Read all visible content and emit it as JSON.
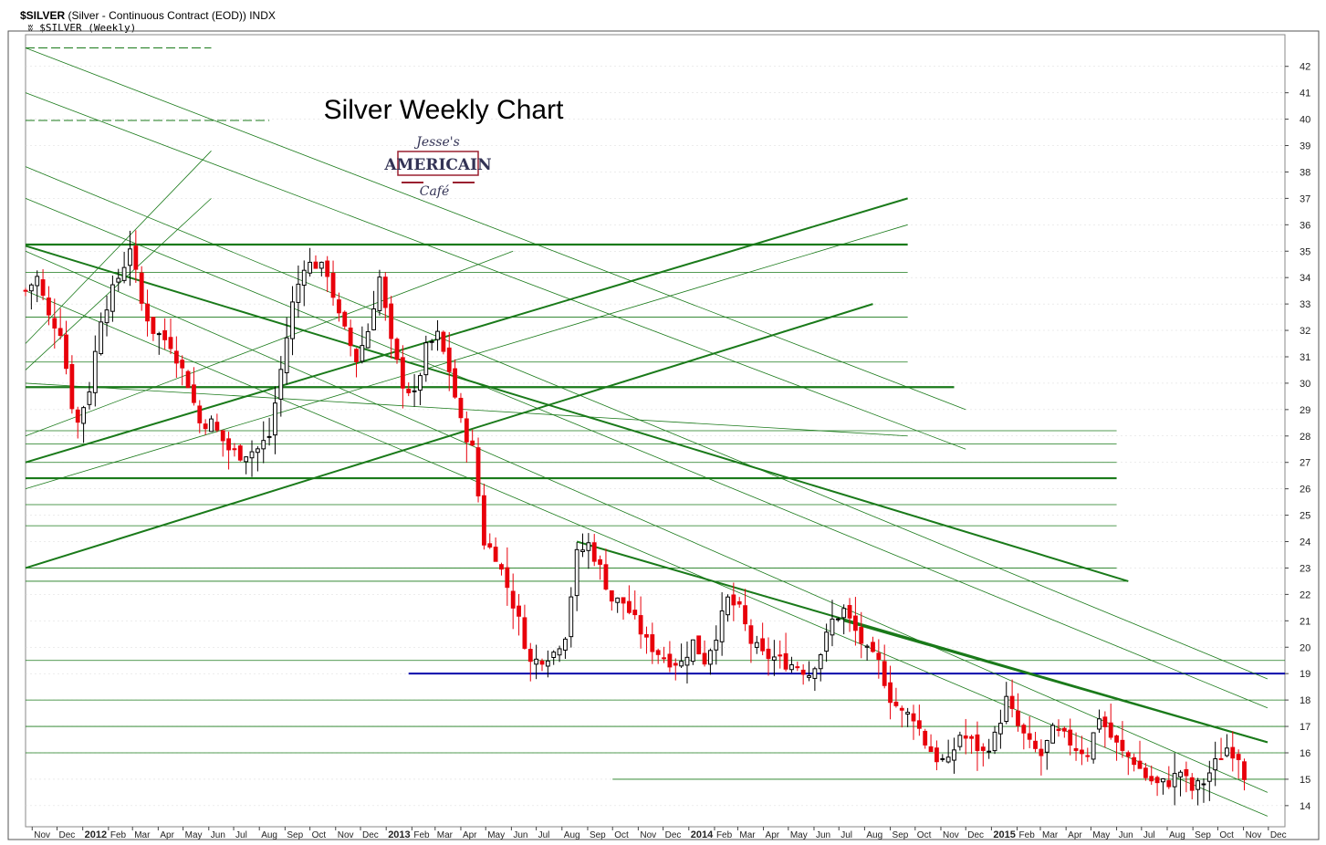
{
  "header": {
    "symbol": "$SILVER",
    "description": "(Silver - Continuous Contract (EOD)) INDX",
    "series_label": "$SILVER (Weekly)"
  },
  "logo": {
    "line1": "Jesse's",
    "line2": "AMERICAIN",
    "line3": "Café"
  },
  "colors": {
    "up": "#ffffff",
    "down": "#e8000b",
    "wick": "#000000",
    "trend": "#1a7a1a",
    "support": "#0000aa",
    "grid": "#d8d8d8"
  },
  "chart_data": {
    "type": "candlestick",
    "title": "Silver Weekly Chart",
    "ylim": [
      13.2,
      43.2
    ],
    "yticks": [
      14,
      15,
      16,
      17,
      18,
      19,
      20,
      21,
      22,
      23,
      24,
      25,
      26,
      27,
      28,
      29,
      30,
      31,
      32,
      33,
      34,
      35,
      36,
      37,
      38,
      39,
      40,
      41,
      42
    ],
    "xlim": [
      "2011-10-24",
      "2015-12-21"
    ],
    "x_ticks": [
      {
        "label": "Nov",
        "date": "2011-11-01"
      },
      {
        "label": "Dec",
        "date": "2011-12-01"
      },
      {
        "label": "2012",
        "date": "2012-01-01",
        "year": true
      },
      {
        "label": "Feb",
        "date": "2012-02-01"
      },
      {
        "label": "Mar",
        "date": "2012-03-01"
      },
      {
        "label": "Apr",
        "date": "2012-04-01"
      },
      {
        "label": "May",
        "date": "2012-05-01"
      },
      {
        "label": "Jun",
        "date": "2012-06-01"
      },
      {
        "label": "Jul",
        "date": "2012-07-01"
      },
      {
        "label": "Aug",
        "date": "2012-08-01"
      },
      {
        "label": "Sep",
        "date": "2012-09-01"
      },
      {
        "label": "Oct",
        "date": "2012-10-01"
      },
      {
        "label": "Nov",
        "date": "2012-11-01"
      },
      {
        "label": "Dec",
        "date": "2012-12-01"
      },
      {
        "label": "2013",
        "date": "2013-01-01",
        "year": true
      },
      {
        "label": "Feb",
        "date": "2013-02-01"
      },
      {
        "label": "Mar",
        "date": "2013-03-01"
      },
      {
        "label": "Apr",
        "date": "2013-04-01"
      },
      {
        "label": "May",
        "date": "2013-05-01"
      },
      {
        "label": "Jun",
        "date": "2013-06-01"
      },
      {
        "label": "Jul",
        "date": "2013-07-01"
      },
      {
        "label": "Aug",
        "date": "2013-08-01"
      },
      {
        "label": "Sep",
        "date": "2013-09-01"
      },
      {
        "label": "Oct",
        "date": "2013-10-01"
      },
      {
        "label": "Nov",
        "date": "2013-11-01"
      },
      {
        "label": "Dec",
        "date": "2013-12-01"
      },
      {
        "label": "2014",
        "date": "2014-01-01",
        "year": true
      },
      {
        "label": "Feb",
        "date": "2014-02-01"
      },
      {
        "label": "Mar",
        "date": "2014-03-01"
      },
      {
        "label": "Apr",
        "date": "2014-04-01"
      },
      {
        "label": "May",
        "date": "2014-05-01"
      },
      {
        "label": "Jun",
        "date": "2014-06-01"
      },
      {
        "label": "Jul",
        "date": "2014-07-01"
      },
      {
        "label": "Aug",
        "date": "2014-08-01"
      },
      {
        "label": "Sep",
        "date": "2014-09-01"
      },
      {
        "label": "Oct",
        "date": "2014-10-01"
      },
      {
        "label": "Nov",
        "date": "2014-11-01"
      },
      {
        "label": "Dec",
        "date": "2014-12-01"
      },
      {
        "label": "2015",
        "date": "2015-01-01",
        "year": true
      },
      {
        "label": "Feb",
        "date": "2015-02-01"
      },
      {
        "label": "Mar",
        "date": "2015-03-01"
      },
      {
        "label": "Apr",
        "date": "2015-04-01"
      },
      {
        "label": "May",
        "date": "2015-05-01"
      },
      {
        "label": "Jun",
        "date": "2015-06-01"
      },
      {
        "label": "Jul",
        "date": "2015-07-01"
      },
      {
        "label": "Aug",
        "date": "2015-08-01"
      },
      {
        "label": "Sep",
        "date": "2015-09-01"
      },
      {
        "label": "Oct",
        "date": "2015-10-01"
      },
      {
        "label": "Nov",
        "date": "2015-11-01"
      },
      {
        "label": "Dec",
        "date": "2015-12-01"
      }
    ],
    "grid": true,
    "close_keypoints": [
      [
        "2011-10-24",
        33.5
      ],
      [
        "2011-11-07",
        34.0
      ],
      [
        "2011-11-21",
        32.5
      ],
      [
        "2011-12-05",
        32.0
      ],
      [
        "2011-12-19",
        29.2
      ],
      [
        "2011-12-26",
        28.5
      ],
      [
        "2012-01-09",
        29.8
      ],
      [
        "2012-01-23",
        32.5
      ],
      [
        "2012-02-06",
        33.5
      ],
      [
        "2012-02-20",
        34.5
      ],
      [
        "2012-02-27",
        35.2
      ],
      [
        "2012-03-12",
        33.0
      ],
      [
        "2012-03-26",
        32.0
      ],
      [
        "2012-04-16",
        31.5
      ],
      [
        "2012-05-07",
        30.0
      ],
      [
        "2012-05-21",
        28.5
      ],
      [
        "2012-06-04",
        28.5
      ],
      [
        "2012-06-25",
        27.5
      ],
      [
        "2012-07-09",
        27.3
      ],
      [
        "2012-07-30",
        27.5
      ],
      [
        "2012-08-13",
        28.0
      ],
      [
        "2012-08-27",
        30.5
      ],
      [
        "2012-09-10",
        33.0
      ],
      [
        "2012-09-24",
        34.5
      ],
      [
        "2012-10-08",
        34.5
      ],
      [
        "2012-10-22",
        34.2
      ],
      [
        "2012-11-05",
        32.5
      ],
      [
        "2012-11-26",
        30.9
      ],
      [
        "2012-12-10",
        32.0
      ],
      [
        "2012-12-24",
        34.0
      ],
      [
        "2013-01-07",
        31.5
      ],
      [
        "2013-01-21",
        30.0
      ],
      [
        "2013-02-04",
        29.5
      ],
      [
        "2013-02-18",
        31.3
      ],
      [
        "2013-03-04",
        31.8
      ],
      [
        "2013-03-18",
        30.5
      ],
      [
        "2013-04-01",
        28.5
      ],
      [
        "2013-04-15",
        27.5
      ],
      [
        "2013-04-29",
        24.0
      ],
      [
        "2013-05-13",
        23.5
      ],
      [
        "2013-05-27",
        22.3
      ],
      [
        "2013-06-10",
        21.0
      ],
      [
        "2013-06-24",
        19.4
      ],
      [
        "2013-07-08",
        19.6
      ],
      [
        "2013-07-22",
        19.8
      ],
      [
        "2013-08-05",
        20.5
      ],
      [
        "2013-08-19",
        23.5
      ],
      [
        "2013-09-02",
        23.9
      ],
      [
        "2013-09-16",
        23.0
      ],
      [
        "2013-09-30",
        21.8
      ],
      [
        "2013-10-14",
        21.7
      ],
      [
        "2013-10-28",
        21.0
      ],
      [
        "2013-11-11",
        20.2
      ],
      [
        "2013-11-25",
        19.8
      ],
      [
        "2013-12-09",
        19.5
      ],
      [
        "2013-12-23",
        19.4
      ],
      [
        "2014-01-06",
        20.2
      ],
      [
        "2014-01-20",
        19.5
      ],
      [
        "2014-02-03",
        20.5
      ],
      [
        "2014-02-17",
        21.8
      ],
      [
        "2014-03-03",
        21.4
      ],
      [
        "2014-03-17",
        20.2
      ],
      [
        "2014-03-31",
        19.7
      ],
      [
        "2014-04-14",
        19.6
      ],
      [
        "2014-04-28",
        19.4
      ],
      [
        "2014-05-12",
        19.3
      ],
      [
        "2014-05-26",
        19.0
      ],
      [
        "2014-06-09",
        19.8
      ],
      [
        "2014-06-23",
        21.0
      ],
      [
        "2014-07-07",
        21.4
      ],
      [
        "2014-07-21",
        20.6
      ],
      [
        "2014-08-04",
        19.8
      ],
      [
        "2014-08-18",
        19.4
      ],
      [
        "2014-09-01",
        18.1
      ],
      [
        "2014-09-15",
        17.5
      ],
      [
        "2014-09-29",
        17.4
      ],
      [
        "2014-10-13",
        16.4
      ],
      [
        "2014-10-27",
        15.8
      ],
      [
        "2014-11-10",
        15.6
      ],
      [
        "2014-11-24",
        16.7
      ],
      [
        "2014-12-08",
        16.4
      ],
      [
        "2014-12-22",
        16.0
      ],
      [
        "2015-01-05",
        16.6
      ],
      [
        "2015-01-19",
        18.0
      ],
      [
        "2015-02-02",
        17.0
      ],
      [
        "2015-02-16",
        16.3
      ],
      [
        "2015-03-02",
        15.9
      ],
      [
        "2015-03-16",
        16.8
      ],
      [
        "2015-03-30",
        16.6
      ],
      [
        "2015-04-13",
        16.2
      ],
      [
        "2015-04-27",
        16.0
      ],
      [
        "2015-05-11",
        17.4
      ],
      [
        "2015-05-25",
        16.6
      ],
      [
        "2015-06-08",
        16.0
      ],
      [
        "2015-06-22",
        15.7
      ],
      [
        "2015-07-06",
        15.1
      ],
      [
        "2015-07-20",
        14.8
      ],
      [
        "2015-08-03",
        14.9
      ],
      [
        "2015-08-17",
        15.3
      ],
      [
        "2015-08-31",
        14.6
      ],
      [
        "2015-09-14",
        14.9
      ],
      [
        "2015-09-28",
        15.6
      ],
      [
        "2015-10-12",
        16.2
      ],
      [
        "2015-10-26",
        15.9
      ],
      [
        "2015-11-02",
        15.2
      ]
    ],
    "hlines": [
      {
        "y": 19.0,
        "from": "2013-01-28",
        "to": "2015-12-21",
        "style": "support"
      },
      {
        "y": 35.25,
        "from": "2011-10-24",
        "to": "2014-09-22",
        "style": "trend-bold"
      },
      {
        "y": 29.85,
        "from": "2011-10-24",
        "to": "2014-11-17",
        "style": "trend-bold"
      },
      {
        "y": 26.4,
        "from": "2011-10-24",
        "to": "2015-06-01",
        "style": "trend-bold"
      },
      {
        "y": 16.0,
        "from": "2011-10-24",
        "to": "2015-12-21",
        "style": "trend"
      },
      {
        "y": 17.0,
        "from": "2011-10-24",
        "to": "2015-12-21",
        "style": "trend"
      },
      {
        "y": 18.0,
        "from": "2011-10-24",
        "to": "2015-12-21",
        "style": "trend"
      },
      {
        "y": 15.0,
        "from": "2013-10-01",
        "to": "2015-12-21",
        "style": "trend"
      },
      {
        "y": 19.5,
        "from": "2011-10-24",
        "to": "2015-12-21",
        "style": "trend"
      },
      {
        "y": 23.0,
        "from": "2011-10-24",
        "to": "2015-06-01",
        "style": "trend"
      },
      {
        "y": 22.5,
        "from": "2011-10-24",
        "to": "2015-06-15",
        "style": "trend"
      },
      {
        "y": 24.6,
        "from": "2011-10-24",
        "to": "2015-06-01",
        "style": "trend"
      },
      {
        "y": 25.4,
        "from": "2011-10-24",
        "to": "2015-06-01",
        "style": "trend"
      },
      {
        "y": 27.0,
        "from": "2011-10-24",
        "to": "2015-06-01",
        "style": "trend"
      },
      {
        "y": 27.7,
        "from": "2011-10-24",
        "to": "2015-06-01",
        "style": "trend"
      },
      {
        "y": 28.2,
        "from": "2011-10-24",
        "to": "2015-06-01",
        "style": "trend"
      },
      {
        "y": 30.8,
        "from": "2011-10-24",
        "to": "2014-09-22",
        "style": "trend"
      },
      {
        "y": 32.5,
        "from": "2011-10-24",
        "to": "2014-09-22",
        "style": "trend"
      },
      {
        "y": 34.2,
        "from": "2011-10-24",
        "to": "2014-09-22",
        "style": "trend"
      },
      {
        "y": 39.95,
        "from": "2011-10-24",
        "to": "2012-08-13",
        "style": "trend-dash"
      },
      {
        "y": 42.7,
        "from": "2011-10-24",
        "to": "2012-06-04",
        "style": "trend-dash"
      }
    ],
    "trendlines": [
      {
        "from": [
          "2011-10-24",
          23.0
        ],
        "to": [
          "2014-08-11",
          33.0
        ],
        "bold": true
      },
      {
        "from": [
          "2011-10-24",
          27.0
        ],
        "to": [
          "2014-09-22",
          37.0
        ],
        "bold": true
      },
      {
        "from": [
          "2011-10-24",
          35.2
        ],
        "to": [
          "2015-06-15",
          22.5
        ],
        "bold": true
      },
      {
        "from": [
          "2013-08-19",
          24.0
        ],
        "to": [
          "2015-11-30",
          16.4
        ],
        "bold": true
      },
      {
        "from": [
          "2014-07-07",
          21.0
        ],
        "to": [
          "2015-11-30",
          16.4
        ],
        "bold": true
      },
      {
        "from": [
          "2011-10-24",
          42.7
        ],
        "to": [
          "2014-12-01",
          29.0
        ],
        "bold": false
      },
      {
        "from": [
          "2011-10-24",
          41.0
        ],
        "to": [
          "2014-12-01",
          27.5
        ],
        "bold": false
      },
      {
        "from": [
          "2011-10-24",
          38.2
        ],
        "to": [
          "2015-11-30",
          18.8
        ],
        "bold": false
      },
      {
        "from": [
          "2011-10-24",
          37.0
        ],
        "to": [
          "2015-11-30",
          17.7
        ],
        "bold": false
      },
      {
        "from": [
          "2011-10-24",
          35.0
        ],
        "to": [
          "2015-11-30",
          14.5
        ],
        "bold": false
      },
      {
        "from": [
          "2011-10-24",
          33.5
        ],
        "to": [
          "2015-11-30",
          13.6
        ],
        "bold": false
      },
      {
        "from": [
          "2011-10-24",
          30.0
        ],
        "to": [
          "2014-09-22",
          28.0
        ],
        "bold": false
      },
      {
        "from": [
          "2011-10-24",
          28.0
        ],
        "to": [
          "2013-06-03",
          35.0
        ],
        "bold": false
      },
      {
        "from": [
          "2011-10-24",
          30.5
        ],
        "to": [
          "2012-06-04",
          37.0
        ],
        "bold": false
      },
      {
        "from": [
          "2011-10-24",
          31.5
        ],
        "to": [
          "2012-06-04",
          38.8
        ],
        "bold": false
      },
      {
        "from": [
          "2011-10-24",
          26.0
        ],
        "to": [
          "2014-09-22",
          36.0
        ],
        "bold": false
      }
    ]
  }
}
